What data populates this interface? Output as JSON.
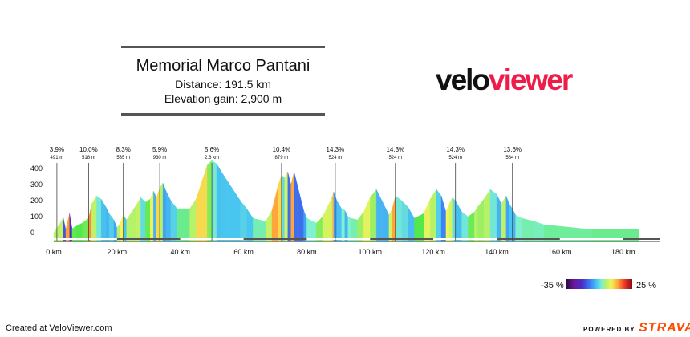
{
  "header": {
    "title": "Memorial Marco Pantani",
    "distance": "Distance: 191.5 km",
    "elevation_gain": "Elevation gain: 2,900 m"
  },
  "logo": {
    "part1": "velo",
    "part2": "viewer"
  },
  "legend": {
    "min_label": "-35 %",
    "max_label": "25 %"
  },
  "footer": {
    "credit": "Created at VeloViewer.com",
    "powered_by": "POWERED BY",
    "brand": "STRAVA"
  },
  "colors": {
    "brand_red": "#ee1c48",
    "strava_orange": "#fc4c02",
    "flat_green": "#55e84c"
  },
  "chart_data": {
    "type": "area",
    "title": "Memorial Marco Pantani",
    "xlabel": "",
    "ylabel": "",
    "xlim": [
      0,
      191.5
    ],
    "ylim": [
      -50,
      450
    ],
    "x_ticks": [
      0,
      20,
      40,
      60,
      80,
      100,
      120,
      140,
      160,
      180
    ],
    "x_tick_labels": [
      "0 km",
      "20 km",
      "40 km",
      "60 km",
      "80 km",
      "100 km",
      "120 km",
      "140 km",
      "160 km",
      "180 km"
    ],
    "y_ticks": [
      0,
      100,
      200,
      300,
      400
    ],
    "y_tick_labels": [
      "0",
      "100",
      "200",
      "300",
      "400"
    ],
    "x": [
      0,
      2,
      3,
      3.8,
      5,
      5.8,
      7,
      9,
      11,
      12,
      13.5,
      15,
      16.5,
      17.5,
      19,
      20,
      21,
      22,
      23,
      25,
      26,
      27.5,
      29,
      30.5,
      31.5,
      32.5,
      33.5,
      34.5,
      35.5,
      37,
      39,
      41,
      43,
      45,
      47,
      48.5,
      50,
      51.5,
      53,
      55,
      57,
      59,
      61,
      63,
      65,
      67,
      69,
      70,
      71,
      72,
      73,
      74,
      75,
      76,
      77,
      78,
      79,
      80,
      81,
      82,
      83,
      84,
      85,
      87,
      88,
      88.5,
      89.5,
      91,
      92,
      93,
      94,
      96,
      98,
      100,
      102,
      103.5,
      105,
      106,
      107,
      108,
      110,
      112,
      114,
      117,
      119,
      121,
      122.5,
      124,
      125,
      126,
      127,
      129,
      131,
      133,
      134,
      136,
      138,
      140,
      141.5,
      143,
      144,
      145,
      146,
      148,
      150,
      152,
      155,
      160,
      165,
      170,
      175,
      180,
      185,
      191.5
    ],
    "elevation": [
      0,
      60,
      95,
      20,
      120,
      25,
      40,
      60,
      90,
      180,
      230,
      210,
      160,
      120,
      80,
      30,
      60,
      110,
      80,
      140,
      170,
      220,
      190,
      210,
      260,
      220,
      280,
      310,
      260,
      200,
      150,
      150,
      150,
      210,
      330,
      420,
      450,
      430,
      380,
      320,
      260,
      200,
      150,
      90,
      80,
      70,
      140,
      220,
      300,
      360,
      340,
      380,
      300,
      380,
      300,
      220,
      140,
      90,
      80,
      70,
      60,
      80,
      100,
      180,
      220,
      255,
      200,
      150,
      140,
      100,
      90,
      80,
      130,
      220,
      270,
      210,
      150,
      110,
      150,
      230,
      200,
      160,
      90,
      120,
      210,
      270,
      230,
      130,
      180,
      220,
      200,
      130,
      100,
      130,
      160,
      210,
      270,
      240,
      180,
      230,
      180,
      150,
      110,
      90,
      80,
      70,
      50,
      40,
      30,
      20,
      20,
      20,
      20
    ],
    "climbs": [
      {
        "x": 1,
        "gradient": "3.9%",
        "elevation": "491 m"
      },
      {
        "x": 11,
        "gradient": "10.0%",
        "elevation": "518 m"
      },
      {
        "x": 22,
        "gradient": "8.3%",
        "elevation": "535 m"
      },
      {
        "x": 33.5,
        "gradient": "5.9%",
        "elevation": "930 m"
      },
      {
        "x": 50,
        "gradient": "5.6%",
        "elevation": "2.6 km"
      },
      {
        "x": 72,
        "gradient": "10.4%",
        "elevation": "879 m"
      },
      {
        "x": 89,
        "gradient": "14.3%",
        "elevation": "524 m"
      },
      {
        "x": 108,
        "gradient": "14.3%",
        "elevation": "524 m"
      },
      {
        "x": 127,
        "gradient": "14.3%",
        "elevation": "524 m"
      },
      {
        "x": 145,
        "gradient": "13.6%",
        "elevation": "584 m"
      }
    ],
    "legend": {
      "min": "-35 %",
      "max": "25 %"
    },
    "grid": false
  }
}
